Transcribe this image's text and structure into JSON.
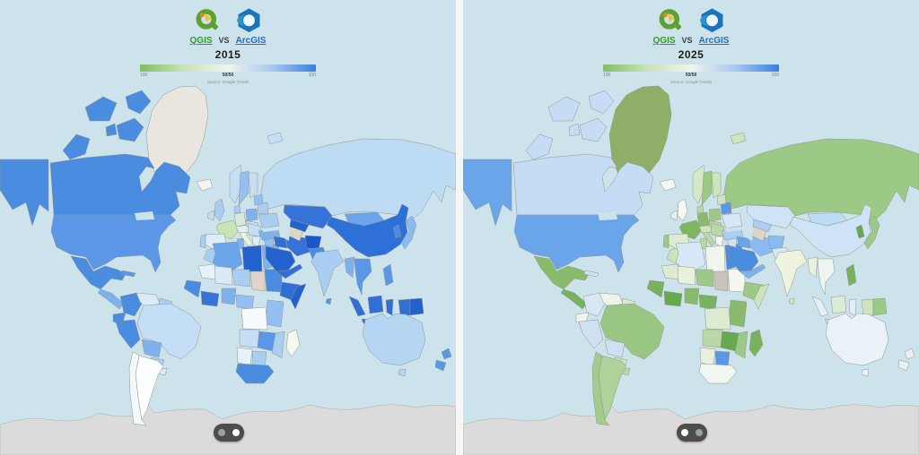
{
  "page": {
    "divider_color": "#f6f6f6"
  },
  "header": {
    "qgis_label": "QGIS",
    "vs_label": "VS",
    "arcgis_label": "ArcGIS"
  },
  "legend": {
    "left_label": "100",
    "center_label": "50/50",
    "right_label": "100",
    "source_label": "Source: Google Trends",
    "gradient": [
      "#7fbf60",
      "#c8e2b8",
      "#f0f4ee",
      "#a9c9f1",
      "#3a7ede"
    ]
  },
  "map_style": {
    "ocean": "#cde3ec",
    "no_data": "#e8e6df",
    "stroke": "#8f958c",
    "antarctica_stroke": "#a8aaa6"
  },
  "panels": [
    {
      "year": "2015",
      "toggle": {
        "left_dot_color": "#97a59b",
        "right_dot_color": "#ffffff"
      },
      "region_colors": {
        "antarctica": "#dbdbdb",
        "russia": "#bedbf4",
        "russia_west_sliver": "#bedbf4",
        "svalbard": "#c3def5",
        "greenland": "#e8e6df",
        "canada": "#4a8ce0",
        "canada_islands": "#4a8ce0",
        "alaska": "#4a8ce0",
        "usa": "#5b97e6",
        "mexico": "#4a8ce0",
        "central_america": "#7fb2ec",
        "cuba": "#5b97e6",
        "colombia": "#4a8ce0",
        "venezuela": "#d9eaf8",
        "guyanas": "#a9cef2",
        "ecuador": "#4a8ce0",
        "peru": "#4a8ce0",
        "brazil": "#c3def5",
        "bolivia": "#7fb2ec",
        "paraguay": "#a9cef2",
        "uruguay": "#d9eaf8",
        "argentina": "#fdfefe",
        "chile": "#f4f8fb",
        "iceland": "#f2f6ee",
        "uk": "#a9cef2",
        "ireland": "#c3def5",
        "norway": "#c3def5",
        "sweden": "#93c0f0",
        "finland": "#c6ddf4",
        "denmark": "#a9cef2",
        "germany": "#d6e9dc",
        "france": "#c9e5b3",
        "spain": "#dceef8",
        "portugal": "#a9cef2",
        "italy": "#f0f3d8",
        "central_europe": "#dceef8",
        "hungary_cz": "#c3def5",
        "poland": "#7fb2ec",
        "belarus": "#a9cef2",
        "baltics": "#93c0f0",
        "ukraine": "#a9cef2",
        "romania_balkans": "#c3def5",
        "greece": "#dceef8",
        "morocco": "#a9cef2",
        "algeria": "#6aa5ea",
        "tunisia": "#7fb2ec",
        "libya": "#2361cf",
        "egypt": "#7fb2ec",
        "mauritania": "#e6f1fa",
        "mali": "#d9eaf8",
        "niger": "#a9cef2",
        "chad": "#ded5c8",
        "sudan": "#4a8ce0",
        "senegal_guinea": "#4a8ce0",
        "ivory_ghana": "#3573d8",
        "nigeria": "#7fb2ec",
        "cameroon_car": "#93c0f0",
        "ethiopia": "#2f6fd6",
        "somalia": "#2361cf",
        "kenya_tanzania": "#93c0f0",
        "drc": "#f7fafc",
        "angola": "#c3def5",
        "zambia_zimbabwe": "#5b97e6",
        "mozambique": "#a9cef2",
        "namibia": "#e6f1fa",
        "botswana": "#a9cef2",
        "south_africa": "#4a8ce0",
        "madagascar": "#f4f8ef",
        "turkey": "#7fb2ec",
        "syria_levant": "#93c0f0",
        "iraq": "#2f6fd6",
        "saudi": "#2361cf",
        "yemen_oman": "#2f6fd6",
        "iran": "#3573d8",
        "turkmenistan": "#ded5c8",
        "uzbekistan": "#2361cf",
        "kazakhstan": "#3573d8",
        "afghanistan": "#1c55c8",
        "pakistan": "#4a8ce0",
        "india": "#a9cef2",
        "srilanka": "#5b97e6",
        "mongolia": "#6aa5ea",
        "china": "#2e6fd8",
        "korea": "#4a8ce0",
        "japan": "#8abbf0",
        "myanmar": "#7fb2ec",
        "thailand_vietnam": "#5b97e6",
        "philippines": "#5b97e6",
        "sumatra": "#2f6fd6",
        "borneo": "#2f6fd6",
        "java": "#2f6fd6",
        "sulawesi": "#2f6fd6",
        "west_newguinea": "#2f6fd6",
        "png": "#2361cf",
        "australia": "#b5d6f3",
        "tasmania": "#b5d6f3",
        "new_zealand": "#5b97e6"
      }
    },
    {
      "year": "2025",
      "toggle": {
        "left_dot_color": "#ffffff",
        "right_dot_color": "#97a59b"
      },
      "region_colors": {
        "antarctica": "#dbdbdb",
        "russia": "#9cca86",
        "russia_west_sliver": "#9cca86",
        "svalbard": "#cde4bd",
        "greenland": "#8fae68",
        "canada": "#c5dcf4",
        "canada_islands": "#c5dcf4",
        "alaska": "#6aa5ea",
        "usa": "#6aa5ea",
        "mexico": "#8abb6d",
        "central_america": "#79b25e",
        "cuba": "#cfe3f6",
        "colombia": "#d7e7f6",
        "venezuela": "#eef5e8",
        "guyanas": "#d9ead0",
        "ecuador": "#eef5f0",
        "peru": "#cfe0f2",
        "brazil": "#99c783",
        "bolivia": "#cfe0f2",
        "paraguay": "#cde4bd",
        "uruguay": "#b9d8a6",
        "argentina": "#aed29a",
        "chile": "#a3cc8c",
        "iceland": "#f4f8f0",
        "uk": "#f6f8f4",
        "ireland": "#e6f0dc",
        "norway": "#d5e8c6",
        "sweden": "#9cc986",
        "finland": "#cde4bd",
        "denmark": "#b9d8a6",
        "germany": "#8abb6d",
        "france": "#7fb55f",
        "spain": "#dcebd2",
        "portugal": "#9cc986",
        "italy": "#b9d8a6",
        "central_europe": "#cde4bd",
        "hungary_cz": "#b9d8a6",
        "poland": "#9cc986",
        "belarus": "#5b97e6",
        "baltics": "#cde4bd",
        "ukraine": "#d7e7f6",
        "romania_balkans": "#b9d8a6",
        "greece": "#f4f7f2",
        "morocco": "#cde4bd",
        "algeria": "#d7e7f6",
        "tunisia": "#b9d8a6",
        "libya": "#f2f5ec",
        "egypt": "#4a8ce0",
        "mauritania": "#dcebd2",
        "mali": "#e8f1de",
        "niger": "#9cc986",
        "chad": "#cac3bb",
        "sudan": "#f4f7ee",
        "senegal_guinea": "#79b25e",
        "ivory_ghana": "#66a94e",
        "nigeria": "#8abb6d",
        "cameroon_car": "#79b25e",
        "ethiopia": "#9cc986",
        "somalia": "#cde4bd",
        "kenya_tanzania": "#8abb6d",
        "drc": "#dcebd2",
        "angola": "#b9d8a6",
        "zambia_zimbabwe": "#66a94e",
        "mozambique": "#9cc986",
        "namibia": "#e8f1de",
        "botswana": "#5b97e6",
        "south_africa": "#f2f6f0",
        "madagascar": "#79b25e",
        "turkey": "#abcdf1",
        "syria_levant": "#cfe3f6",
        "iraq": "#6aa5ea",
        "saudi": "#4a8ce0",
        "yemen_oman": "#7fb2ec",
        "iran": "#8abbf0",
        "turkmenistan": "#ded5c8",
        "uzbekistan": "#abcdf1",
        "kazakhstan": "#cfe3f6",
        "afghanistan": "#8abbf0",
        "pakistan": "#d7e7f6",
        "india": "#eef3de",
        "srilanka": "#cde4bd",
        "mongolia": "#bedbf4",
        "china": "#cfe3f6",
        "korea": "#66a94e",
        "japan": "#9cc986",
        "myanmar": "#e8f1de",
        "thailand_vietnam": "#eef5f0",
        "philippines": "#79b25e",
        "sumatra": "#e6eff6",
        "borneo": "#dcebd2",
        "java": "#cde4bd",
        "sulawesi": "#e6eff6",
        "west_newguinea": "#cde4bd",
        "png": "#9cc986",
        "australia": "#eaf2f7",
        "tasmania": "#eaf2f7",
        "new_zealand": "#e8f0f2"
      }
    }
  ]
}
